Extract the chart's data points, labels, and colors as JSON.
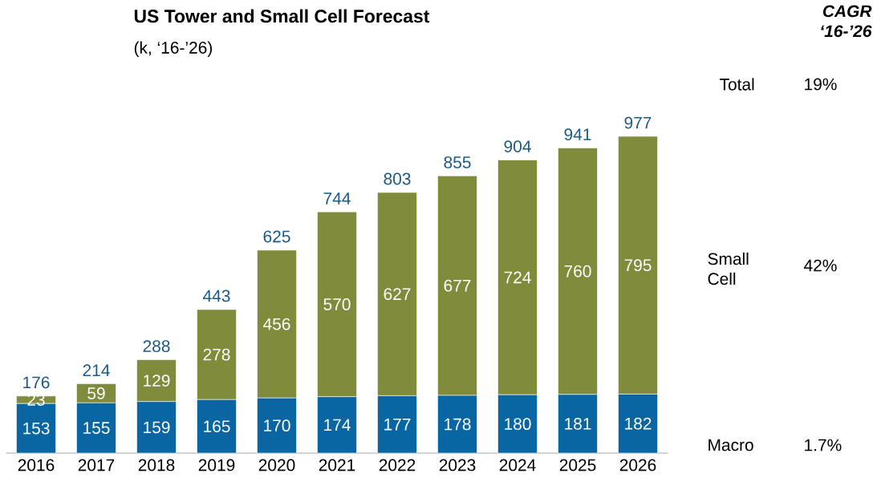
{
  "chart_data": {
    "type": "bar",
    "stacked": true,
    "title": "US Tower and Small Cell Forecast",
    "subtitle": "(k, ‘16-’26)",
    "categories": [
      "2016",
      "2017",
      "2018",
      "2019",
      "2020",
      "2021",
      "2022",
      "2023",
      "2024",
      "2025",
      "2026"
    ],
    "series": [
      {
        "name": "Macro",
        "color": "#0a66a2",
        "values": [
          153,
          155,
          159,
          165,
          170,
          174,
          177,
          178,
          180,
          181,
          182
        ]
      },
      {
        "name": "Small Cell",
        "color": "#808b3b",
        "values": [
          23,
          59,
          129,
          278,
          456,
          570,
          627,
          677,
          724,
          760,
          795
        ]
      }
    ],
    "data_labels": true,
    "totals": [
      "176",
      "214",
      "288",
      "443",
      "625",
      "744",
      "803",
      "855",
      "904",
      "941",
      "977"
    ],
    "annotations": [
      "CAGR ‘16-’26",
      "Total",
      "19%",
      "42%",
      "1.7%"
    ]
  }
}
